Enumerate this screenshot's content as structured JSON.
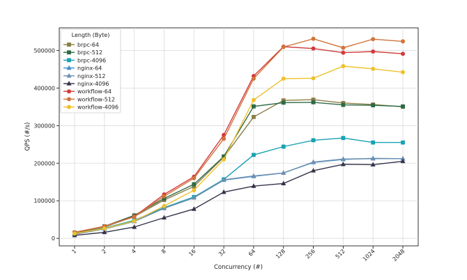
{
  "chart_data": {
    "type": "line",
    "title": "",
    "xlabel": "Concurrency (#)",
    "ylabel": "QPS (#/s)",
    "categories": [
      "1",
      "2",
      "4",
      "8",
      "16",
      "32",
      "64",
      "128",
      "256",
      "512",
      "1024",
      "2048"
    ],
    "ylim": [
      -20000,
      560000
    ],
    "yticks": [
      0,
      100000,
      200000,
      300000,
      400000,
      500000
    ],
    "grid": true,
    "legend": {
      "title": "Length (Byte)",
      "placement": "top-left"
    },
    "series": [
      {
        "name": "brpc-64",
        "color": "#8b7d45",
        "marker": "square",
        "values": [
          14000,
          30000,
          58000,
          102000,
          138000,
          216000,
          323000,
          367000,
          369000,
          360000,
          356000,
          350000
        ]
      },
      {
        "name": "brpc-512",
        "color": "#2e6b45",
        "marker": "square",
        "values": [
          15000,
          32000,
          61000,
          106000,
          144000,
          218000,
          351000,
          361000,
          362000,
          355000,
          354000,
          351000
        ]
      },
      {
        "name": "brpc-4096",
        "color": "#17a2b2",
        "marker": "square",
        "values": [
          12000,
          27000,
          48000,
          82000,
          110000,
          157000,
          222000,
          244000,
          261000,
          267000,
          255000,
          255000
        ]
      },
      {
        "name": "nginx-64",
        "color": "#3b8ed0",
        "marker": "triangle",
        "values": [
          11000,
          25000,
          45000,
          80000,
          108000,
          155000,
          165000,
          174000,
          202000,
          210000,
          213000,
          212000
        ]
      },
      {
        "name": "nginx-512",
        "color": "#6f8fb0",
        "marker": "triangle",
        "values": [
          11000,
          25000,
          45000,
          80000,
          108000,
          156000,
          166000,
          174000,
          203000,
          211000,
          212000,
          212000
        ]
      },
      {
        "name": "nginx-4096",
        "color": "#33334a",
        "marker": "triangle",
        "values": [
          8000,
          16000,
          30000,
          55000,
          78000,
          123000,
          139000,
          146000,
          180000,
          197000,
          196000,
          205000
        ]
      },
      {
        "name": "workflow-64",
        "color": "#d23b3b",
        "marker": "circle",
        "values": [
          16000,
          32000,
          58000,
          117000,
          164000,
          275000,
          432000,
          510000,
          505000,
          494000,
          497000,
          491000
        ]
      },
      {
        "name": "workflow-512",
        "color": "#d2733b",
        "marker": "circle",
        "values": [
          16000,
          32000,
          57000,
          112000,
          160000,
          265000,
          425000,
          509000,
          531000,
          507000,
          530000,
          524000
        ]
      },
      {
        "name": "workflow-4096",
        "color": "#eec12b",
        "marker": "circle",
        "values": [
          13000,
          26000,
          46000,
          86000,
          128000,
          210000,
          368000,
          425000,
          426000,
          458000,
          451000,
          442000
        ]
      }
    ]
  }
}
